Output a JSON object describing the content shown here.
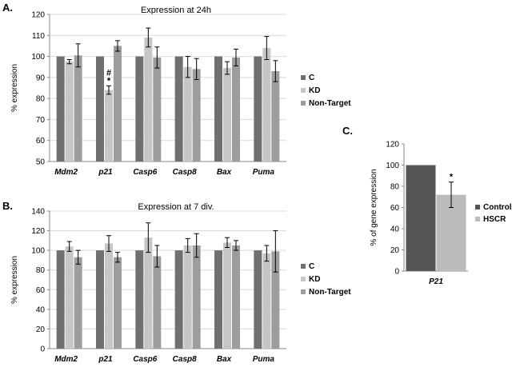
{
  "colors": {
    "C": "#707070",
    "KD": "#c6c6c6",
    "NonTarget": "#9d9d9d",
    "Control": "#555555",
    "HSCR": "#bbbbbb"
  },
  "chart_data": [
    {
      "id": "A",
      "panel_label": "A.",
      "type": "bar",
      "title": "Expression at 24h",
      "xlabel": "",
      "ylabel": "% expression",
      "ylim": [
        50,
        120
      ],
      "yticks": [
        50,
        60,
        70,
        80,
        90,
        100,
        110,
        120
      ],
      "grid": true,
      "categories": [
        "Mdm2",
        "p21",
        "Casp6",
        "Casp8",
        "Bax",
        "Puma"
      ],
      "series": [
        {
          "name": "C",
          "color_key": "C",
          "values": [
            100,
            100,
            100,
            100,
            100,
            100
          ],
          "errors": [
            0,
            0,
            0,
            0,
            0,
            0
          ]
        },
        {
          "name": "KD",
          "color_key": "KD",
          "values": [
            97.5,
            84,
            109,
            95,
            94.5,
            104
          ],
          "errors": [
            1,
            2,
            4.5,
            5,
            3,
            5.5
          ]
        },
        {
          "name": "Non-Target",
          "color_key": "NonTarget",
          "values": [
            100.5,
            105,
            99.5,
            94,
            99.5,
            93
          ],
          "errors": [
            5.5,
            2.5,
            5,
            5,
            4,
            5
          ]
        }
      ],
      "annotations": [
        {
          "category": "p21",
          "series": "KD",
          "text": "#"
        },
        {
          "category": "p21",
          "series": "KD",
          "text": "*"
        }
      ],
      "legend": {
        "position": "right",
        "entries": [
          "C",
          "KD",
          "Non-Target"
        ]
      }
    },
    {
      "id": "B",
      "panel_label": "B.",
      "type": "bar",
      "title": "Expression at 7 div.",
      "xlabel": "",
      "ylabel": "% expression",
      "ylim": [
        0,
        140
      ],
      "yticks": [
        0,
        20,
        40,
        60,
        80,
        100,
        120,
        140
      ],
      "grid": true,
      "categories": [
        "Mdm2",
        "p21",
        "Casp6",
        "Casp8",
        "Bax",
        "Puma"
      ],
      "series": [
        {
          "name": "C",
          "color_key": "C",
          "values": [
            100,
            100,
            100,
            100,
            100,
            100
          ],
          "errors": [
            0,
            0,
            0,
            0,
            0,
            0
          ]
        },
        {
          "name": "KD",
          "color_key": "KD",
          "values": [
            104,
            107,
            113,
            105,
            108,
            97
          ],
          "errors": [
            5,
            8,
            15,
            7,
            5,
            8
          ]
        },
        {
          "name": "Non-Target",
          "color_key": "NonTarget",
          "values": [
            93,
            93,
            94,
            105,
            105,
            99
          ],
          "errors": [
            7,
            5,
            11,
            12,
            5,
            21
          ]
        }
      ],
      "annotations": [],
      "legend": {
        "position": "right",
        "entries": [
          "C",
          "KD",
          "Non-Target"
        ]
      }
    },
    {
      "id": "C",
      "panel_label": "C.",
      "type": "bar",
      "title": "",
      "xlabel": "",
      "ylabel": "% of gene expression",
      "ylim": [
        0,
        120
      ],
      "yticks": [
        0,
        20,
        40,
        60,
        80,
        100,
        120
      ],
      "grid": false,
      "categories": [
        "P21"
      ],
      "series": [
        {
          "name": "Control",
          "color_key": "Control",
          "values": [
            100
          ],
          "errors": [
            0
          ]
        },
        {
          "name": "HSCR",
          "color_key": "HSCR",
          "values": [
            72
          ],
          "errors": [
            12
          ]
        }
      ],
      "annotations": [
        {
          "category": "P21",
          "series": "HSCR",
          "text": "*"
        }
      ],
      "legend": {
        "position": "right",
        "entries": [
          "Control",
          "HSCR"
        ]
      }
    }
  ]
}
